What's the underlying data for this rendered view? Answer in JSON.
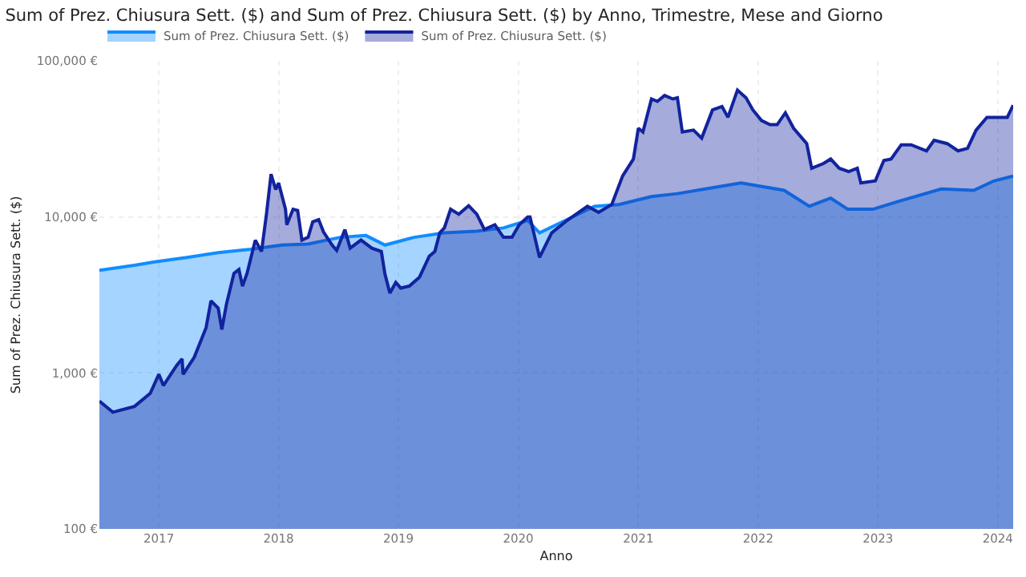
{
  "chart_data": {
    "type": "area",
    "title": "Sum of Prez. Chiusura Sett. ($) and Sum of Prez. Chiusura Sett. ($) by Anno, Trimestre, Mese and Giorno",
    "xlabel": "Anno",
    "ylabel": "Sum of Prez. Chiusura Sett. ($)",
    "log": true,
    "grid": true,
    "legend": "top left",
    "marker": "none",
    "line_style": "solid",
    "xlim": [
      "2016-07-04",
      "2024-02-17"
    ],
    "xticks": [
      "2017",
      "2018",
      "2019",
      "2020",
      "2021",
      "2022",
      "2023",
      "2024"
    ],
    "ylim": [
      100,
      100000
    ],
    "yticks": [
      {
        "value": 100,
        "label": "100 €"
      },
      {
        "value": 1000,
        "label": "1,000 €"
      },
      {
        "value": 10000,
        "label": "10,000 €"
      },
      {
        "value": 100000,
        "label": "100,000 €"
      }
    ],
    "series": [
      {
        "name": "Sum of Prez. Chiusura Sett. ($)",
        "color": "#118dff",
        "x": [
          "2016-07-04",
          "2016-10-19",
          "2016-12-20",
          "2017-03-28",
          "2017-07-01",
          "2017-10-08",
          "2018-01-12",
          "2018-04-01",
          "2018-07-08",
          "2018-09-24",
          "2018-11-21",
          "2019-02-18",
          "2019-05-21",
          "2019-08-28",
          "2019-11-17",
          "2020-01-30",
          "2020-03-06",
          "2020-05-15",
          "2020-08-20",
          "2020-11-03",
          "2021-02-10",
          "2021-04-30",
          "2021-07-24",
          "2021-11-10",
          "2022-03-21",
          "2022-06-06",
          "2022-08-10",
          "2022-10-01",
          "2022-12-17",
          "2023-03-06",
          "2023-07-13",
          "2023-10-20",
          "2023-12-20",
          "2024-02-17"
        ],
        "values": [
          4550,
          4900,
          5150,
          5500,
          5900,
          6200,
          6600,
          6700,
          7400,
          7600,
          6600,
          7400,
          7900,
          8100,
          8500,
          9500,
          7900,
          9300,
          11700,
          12000,
          13500,
          14100,
          15100,
          16500,
          14800,
          11700,
          13200,
          11200,
          11200,
          12600,
          15100,
          14800,
          17000,
          18300
        ]
      },
      {
        "name": "Sum of Prez. Chiusura Sett. ($)",
        "color": "#12239e",
        "x": [
          "2016-07-04",
          "2016-08-14",
          "2016-10-19",
          "2016-12-06",
          "2017-01-01",
          "2017-01-15",
          "2017-02-25",
          "2017-03-13",
          "2017-03-16",
          "2017-04-19",
          "2017-05-25",
          "2017-06-09",
          "2017-07-01",
          "2017-07-12",
          "2017-07-26",
          "2017-08-18",
          "2017-09-02",
          "2017-09-13",
          "2017-09-27",
          "2017-10-22",
          "2017-11-10",
          "2017-11-25",
          "2017-12-09",
          "2017-12-23",
          "2018-01-01",
          "2018-01-22",
          "2018-01-26",
          "2018-02-14",
          "2018-02-28",
          "2018-03-13",
          "2018-04-01",
          "2018-04-15",
          "2018-05-03",
          "2018-05-18",
          "2018-06-13",
          "2018-06-27",
          "2018-07-22",
          "2018-08-07",
          "2018-09-09",
          "2018-10-12",
          "2018-11-10",
          "2018-11-21",
          "2018-12-06",
          "2018-12-24",
          "2019-01-08",
          "2019-02-03",
          "2019-03-06",
          "2019-04-05",
          "2019-04-22",
          "2019-05-07",
          "2019-05-21",
          "2019-06-09",
          "2019-07-04",
          "2019-08-03",
          "2019-08-28",
          "2019-09-20",
          "2019-10-22",
          "2019-11-17",
          "2019-12-13",
          "2020-01-04",
          "2020-01-30",
          "2020-02-06",
          "2020-03-06",
          "2020-04-12",
          "2020-05-29",
          "2020-07-30",
          "2020-09-02",
          "2020-10-12",
          "2020-11-14",
          "2020-12-17",
          "2021-01-01",
          "2021-01-15",
          "2021-02-10",
          "2021-02-28",
          "2021-03-22",
          "2021-04-16",
          "2021-04-30",
          "2021-05-15",
          "2021-06-18",
          "2021-07-13",
          "2021-08-15",
          "2021-09-13",
          "2021-10-01",
          "2021-10-30",
          "2021-11-25",
          "2021-12-16",
          "2022-01-11",
          "2022-02-06",
          "2022-02-28",
          "2022-03-25",
          "2022-04-19",
          "2022-05-29",
          "2022-06-13",
          "2022-07-19",
          "2022-08-10",
          "2022-09-05",
          "2022-10-04",
          "2022-10-30",
          "2022-11-10",
          "2022-12-24",
          "2023-01-19",
          "2023-02-10",
          "2023-03-13",
          "2023-04-12",
          "2023-05-29",
          "2023-06-21",
          "2023-07-31",
          "2023-09-02",
          "2023-10-01",
          "2023-10-27",
          "2023-11-29",
          "2024-01-04",
          "2024-01-30",
          "2024-02-17"
        ],
        "values": [
          660,
          560,
          610,
          740,
          980,
          830,
          1120,
          1230,
          980,
          1260,
          1950,
          2900,
          2600,
          1900,
          2750,
          4350,
          4600,
          3600,
          4350,
          7100,
          6000,
          10400,
          18800,
          15000,
          16500,
          11200,
          8900,
          11200,
          11000,
          7100,
          7400,
          9300,
          9600,
          8000,
          6600,
          6100,
          8300,
          6300,
          7100,
          6300,
          6000,
          4300,
          3250,
          3800,
          3500,
          3600,
          4100,
          5600,
          6000,
          7900,
          8500,
          11200,
          10400,
          11800,
          10400,
          8300,
          8900,
          7400,
          7400,
          8900,
          10000,
          10000,
          5500,
          7900,
          9500,
          11700,
          10700,
          12000,
          18300,
          23500,
          37000,
          35000,
          57000,
          55000,
          60000,
          57000,
          58000,
          35000,
          36000,
          32000,
          48500,
          51000,
          43500,
          65000,
          58000,
          48500,
          41500,
          39000,
          39000,
          46500,
          37000,
          29500,
          20500,
          22000,
          23500,
          20500,
          19500,
          20500,
          16500,
          17000,
          23000,
          23500,
          29000,
          29000,
          26500,
          31000,
          29500,
          26500,
          27500,
          36000,
          43500,
          43500,
          43500,
          52000
        ]
      }
    ]
  }
}
